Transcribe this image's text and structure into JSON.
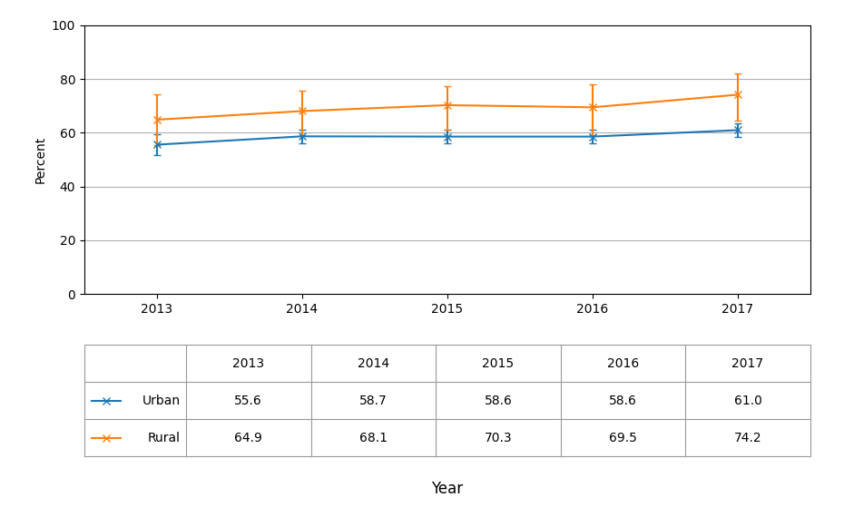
{
  "chart_data": {
    "type": "line",
    "x": [
      2013,
      2014,
      2015,
      2016,
      2017
    ],
    "xlim": [
      2012.5,
      2017.5
    ],
    "xticks": [
      2013,
      2014,
      2015,
      2016,
      2017
    ],
    "ylim": [
      0,
      100
    ],
    "yticks": [
      0,
      20,
      40,
      60,
      80,
      100
    ],
    "ylabel": "Percent",
    "xlabel": "Year",
    "grid": "y",
    "marker": "x",
    "series": [
      {
        "name": "Urban",
        "values": [
          55.6,
          58.7,
          58.6,
          58.6,
          61.0
        ],
        "error_lower": [
          4.0,
          2.5,
          2.5,
          2.5,
          2.5
        ],
        "error_upper": [
          4.0,
          2.5,
          2.5,
          2.5,
          2.5
        ]
      },
      {
        "name": "Rural",
        "values": [
          64.9,
          68.1,
          70.3,
          69.5,
          74.2
        ],
        "error_lower": [
          9.5,
          9.0,
          9.0,
          10.5,
          9.5
        ],
        "error_upper": [
          9.5,
          7.5,
          7.0,
          8.5,
          8.0
        ]
      }
    ]
  }
}
